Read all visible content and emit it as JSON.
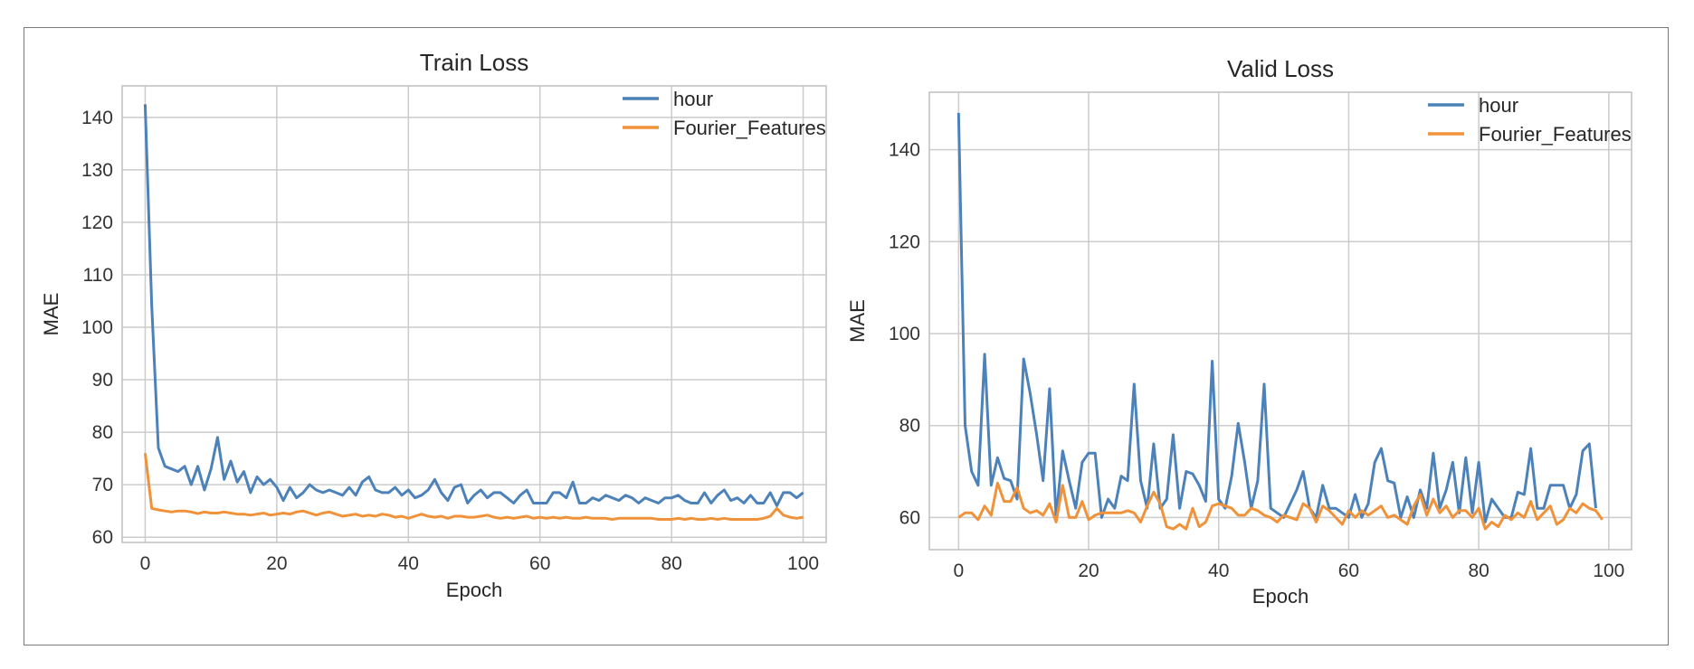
{
  "chart_data": [
    {
      "type": "line",
      "title": "Train Loss",
      "xlabel": "Epoch",
      "ylabel": "MAE",
      "xlim": [
        -3.5,
        103.5
      ],
      "ylim": [
        59,
        146
      ],
      "xticks": [
        0,
        20,
        40,
        60,
        80,
        100
      ],
      "yticks": [
        60,
        70,
        80,
        90,
        100,
        110,
        120,
        130,
        140
      ],
      "grid": true,
      "legend_position": "top-right",
      "series": [
        {
          "name": "hour",
          "color": "#4c82b9",
          "values": [
            142.5,
            104,
            77,
            73.5,
            73,
            72.5,
            73.5,
            70,
            73.5,
            69,
            73,
            79,
            71,
            74.5,
            70.5,
            72.5,
            68.5,
            71.5,
            70,
            71,
            69.5,
            67,
            69.5,
            67.5,
            68.5,
            70,
            69,
            68.5,
            69,
            68.5,
            68,
            69.5,
            68,
            70.5,
            71.5,
            69,
            68.5,
            68.5,
            69.5,
            68,
            69,
            67.5,
            68,
            69,
            71,
            68.5,
            67,
            69.5,
            70,
            66.5,
            68,
            69,
            67.5,
            68.5,
            68.5,
            67.5,
            66.5,
            68,
            69,
            66.5,
            66.5,
            66.5,
            68.5,
            68.5,
            67.5,
            70.5,
            66.5,
            66.5,
            67.5,
            67,
            68,
            67.5,
            67,
            68,
            67.5,
            66.5,
            67.5,
            67,
            66.5,
            67.5,
            67.5,
            68,
            67,
            66.5,
            66.5,
            68.5,
            66.5,
            68,
            69,
            67,
            67.5,
            66.5,
            68,
            66.5,
            66.5,
            68.5,
            66,
            68.5,
            68.5,
            67.5,
            68.5
          ]
        },
        {
          "name": "Fourier_Features",
          "color": "#f0923a",
          "values": [
            76,
            65.5,
            65.2,
            65,
            64.8,
            65,
            65,
            64.8,
            64.5,
            64.8,
            64.6,
            64.6,
            64.8,
            64.6,
            64.4,
            64.4,
            64.2,
            64.4,
            64.6,
            64.2,
            64.4,
            64.6,
            64.4,
            64.8,
            65,
            64.6,
            64.2,
            64.6,
            64.8,
            64.4,
            64,
            64.2,
            64.4,
            64,
            64.2,
            64,
            64.4,
            64.2,
            63.8,
            64,
            63.6,
            64,
            64.4,
            64,
            63.8,
            64,
            63.6,
            64,
            64,
            63.8,
            63.8,
            64,
            64.2,
            63.8,
            63.6,
            63.8,
            63.6,
            63.8,
            64,
            63.6,
            63.8,
            63.6,
            63.8,
            63.6,
            63.8,
            63.6,
            63.6,
            63.8,
            63.6,
            63.6,
            63.6,
            63.4,
            63.6,
            63.6,
            63.6,
            63.6,
            63.6,
            63.6,
            63.4,
            63.4,
            63.4,
            63.6,
            63.4,
            63.6,
            63.4,
            63.4,
            63.6,
            63.4,
            63.6,
            63.4,
            63.4,
            63.4,
            63.4,
            63.4,
            63.6,
            64,
            65.5,
            64.2,
            63.8,
            63.6,
            63.8
          ]
        }
      ]
    },
    {
      "type": "line",
      "title": "Valid Loss",
      "xlabel": "Epoch",
      "ylabel": "MAE",
      "xlim": [
        -4.5,
        103.5
      ],
      "ylim": [
        53,
        152.5
      ],
      "xticks": [
        0,
        20,
        40,
        60,
        80,
        100
      ],
      "yticks": [
        60,
        80,
        100,
        120,
        140
      ],
      "grid": true,
      "legend_position": "top-right",
      "series": [
        {
          "name": "hour",
          "color": "#4c82b9",
          "values": [
            148,
            80,
            70,
            67,
            95.5,
            67,
            73,
            68.5,
            68,
            64,
            94.5,
            87,
            78,
            68,
            88,
            60,
            74.5,
            68,
            62,
            72,
            74,
            74,
            60,
            64,
            62,
            69,
            68,
            89,
            68,
            62,
            76,
            62,
            64,
            78,
            62,
            70,
            69.5,
            67,
            63.5,
            94,
            64,
            62,
            69,
            80.5,
            72,
            62,
            68,
            89,
            62,
            61,
            60,
            63,
            66,
            70,
            62,
            60,
            67,
            62,
            62,
            61,
            60,
            65,
            60,
            63,
            72,
            75,
            68,
            67.5,
            60,
            64.5,
            60,
            66,
            62,
            74,
            62,
            66,
            72,
            61,
            73,
            61,
            72,
            59,
            64,
            62,
            60,
            60,
            65.5,
            65,
            75,
            62,
            62,
            67,
            67,
            67,
            62,
            65,
            74.5,
            76,
            62
          ]
        },
        {
          "name": "Fourier_Features",
          "color": "#f0923a",
          "values": [
            60,
            61,
            61,
            59.5,
            62.5,
            60.5,
            67.5,
            63.5,
            63.5,
            66.5,
            62,
            61,
            61.5,
            60.5,
            63,
            59,
            67,
            60,
            60,
            63.5,
            59.5,
            60.5,
            61,
            61,
            61,
            61,
            61.5,
            61,
            59,
            62.5,
            65.5,
            63,
            58,
            57.5,
            58.5,
            57.5,
            62,
            58,
            59,
            62.5,
            63,
            62.5,
            62,
            60.5,
            60.5,
            62,
            61.5,
            60.5,
            60,
            59,
            60.5,
            60,
            59.5,
            63,
            62,
            59,
            62.5,
            61.5,
            60,
            58.5,
            61.5,
            60,
            61.5,
            60.5,
            61.5,
            62.5,
            60,
            60.5,
            59.5,
            58.5,
            62.5,
            65,
            60.5,
            64,
            61,
            62.5,
            60,
            61.5,
            61.5,
            60,
            62,
            57.5,
            59,
            58,
            60.5,
            59.5,
            61,
            60,
            63.5,
            59.5,
            61,
            62.5,
            58.5,
            59.5,
            62,
            61,
            63,
            62,
            61.5,
            59.5
          ]
        }
      ]
    }
  ]
}
